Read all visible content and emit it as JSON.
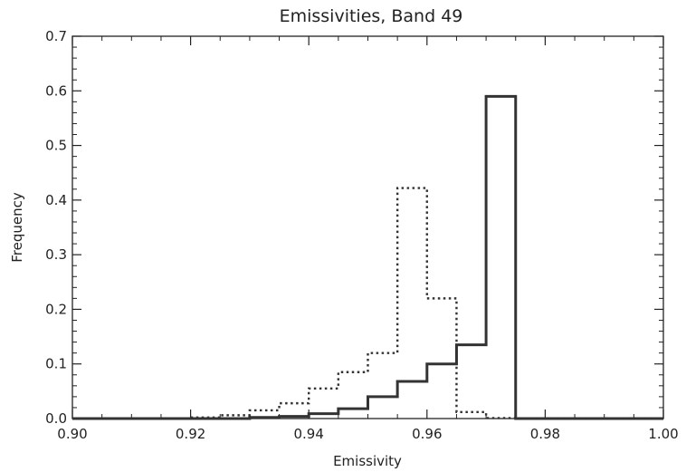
{
  "chart_data": {
    "type": "line",
    "title": "Emissivities, Band 49",
    "xlabel": "Emissivity",
    "ylabel": "Frequency",
    "xlim": [
      0.9,
      1.0
    ],
    "ylim": [
      0.0,
      0.7
    ],
    "x_ticks": [
      "0.90",
      "0.92",
      "0.94",
      "0.96",
      "0.98",
      "1.00"
    ],
    "y_ticks": [
      "0.0",
      "0.1",
      "0.2",
      "0.3",
      "0.4",
      "0.5",
      "0.6",
      "0.7"
    ],
    "grid": false,
    "step_style": "histogram",
    "bin_edges": [
      0.9,
      0.905,
      0.91,
      0.915,
      0.92,
      0.925,
      0.93,
      0.935,
      0.94,
      0.945,
      0.95,
      0.955,
      0.96,
      0.965,
      0.97,
      0.975,
      0.98,
      0.985,
      0.99,
      0.995,
      1.0
    ],
    "series": [
      {
        "line_style": "solid",
        "color": "#333333",
        "values": [
          0.0,
          0.0,
          0.0,
          0.0,
          0.0,
          0.0,
          0.002,
          0.004,
          0.009,
          0.018,
          0.04,
          0.068,
          0.1,
          0.135,
          0.59,
          0.0,
          0.0,
          0.0,
          0.0,
          0.0
        ]
      },
      {
        "line_style": "dotted",
        "color": "#333333",
        "values": [
          0.0,
          0.0,
          0.0,
          0.0,
          0.002,
          0.006,
          0.015,
          0.028,
          0.055,
          0.085,
          0.12,
          0.422,
          0.22,
          0.012,
          0.001,
          0.0,
          0.0,
          0.0,
          0.0,
          0.0
        ]
      }
    ]
  }
}
